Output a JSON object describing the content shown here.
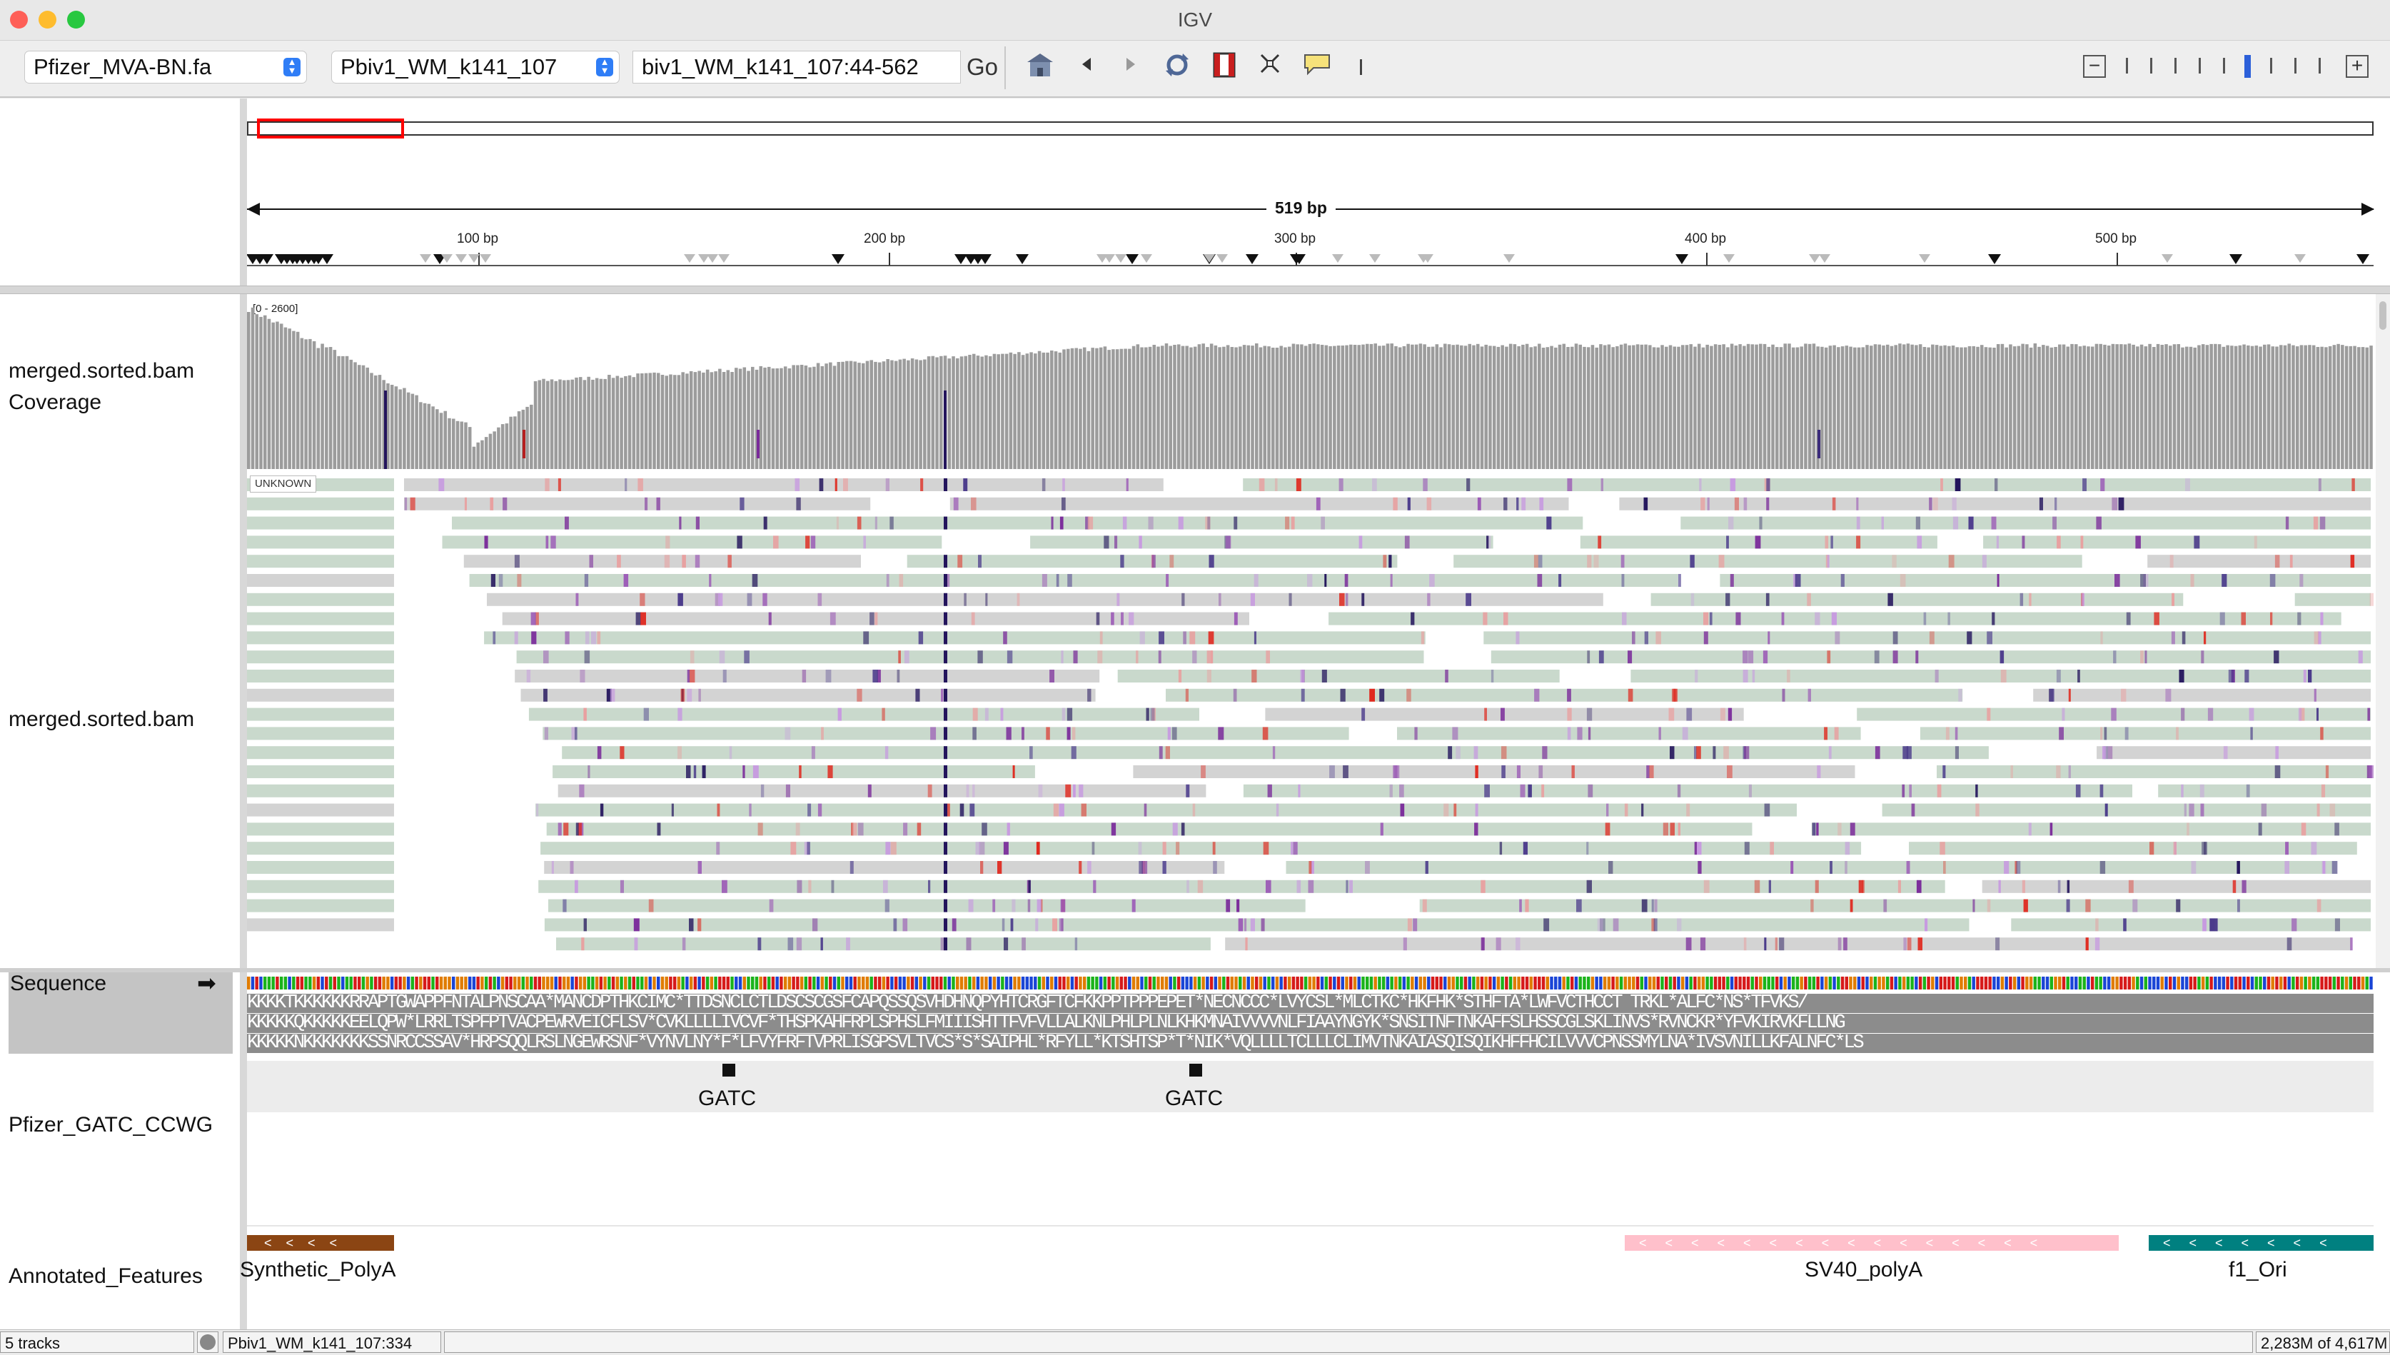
{
  "window": {
    "title": "IGV",
    "traffic_colors": [
      "#fe5f57",
      "#febc2e",
      "#28c840"
    ]
  },
  "toolbar": {
    "genome": "Pfizer_MVA-BN.fa",
    "chromosome": "Pbiv1_WM_k141_107",
    "locus": "biv1_WM_k141_107:44-562",
    "go_label": "Go",
    "icons": [
      "home-icon",
      "back-icon",
      "forward-icon",
      "refresh-icon",
      "roi-icon",
      "resize-icon",
      "popup-info-icon"
    ],
    "zoom_minus": "−",
    "zoom_plus": "+"
  },
  "ruler": {
    "span_label": "519 bp",
    "ticks": [
      "100 bp",
      "200 bp",
      "300 bp",
      "400 bp",
      "500 bp"
    ]
  },
  "tracks": {
    "coverage_name": "merged.sorted.bam Coverage",
    "coverage_range": "[0 - 2600]",
    "alignment_name": "merged.sorted.bam",
    "unknown_tag": "UNKNOWN",
    "sequence_name": "Sequence",
    "sequence_arrow": "➡",
    "gatc_name": "Pfizer_GATC_CCWG",
    "annot_name": "Annotated_Features"
  },
  "translation": {
    "frame1": "KKKKTKKKKKKRRAPTGWAPPFNTALPNSCAA*MANCDPTHKCIMC*TTDSNCLCTLDSCSCGSFCAPQSSQSVHDHNQPYHTCRGFTCFKKPPTPPPEPET*NECNCCC*LVYCSL*MLCTKC*HKFHK*STHFTA*LWFVCTHCCT TRKL*ALFC*NS*TFVKS/",
    "frame2": "KKKKKQKKKKKEELQPW*LRRLTSPFPTVACPEWRVEICFLSV*CVKLLLLIVCVF*THSPKAHFRPLSPHSLFMIIISHTTFVFVLLALKNLPHLPLNLKHKMNAIVVVVNLFIAAYNGYK*SNSITNFTNKAFFSLHSSCGLSKLINVS*RVNCKR*YFVKIRVKFLLNG",
    "frame3": "KKKKKNKKKKKKKSSNRCCSSAV*HRPSQQLRSLNGEWRSNF*VYNVLNY*F*LFVYFRFTVPRLISGPSVLTVCS*S*SAIPHL*RFYLL*KTSHTSP*T*NIK*VQLLLLTCLLLCLIMVTNKAIASQISQIKHFFHCILVVVCPNSSMYLNA*IVSVNILLKFALNFC*LS"
  },
  "features": {
    "gatc_labels": [
      "GATC",
      "GATC"
    ],
    "annotations": [
      {
        "label": "Synthetic_PolyA",
        "color": "#8b4513"
      },
      {
        "label": "SV40_polyA",
        "color": "#ffc0cb"
      },
      {
        "label": "f1_Ori",
        "color": "#008080"
      }
    ]
  },
  "status": {
    "tracks": "5 tracks",
    "position": "Pbiv1_WM_k141_107:334",
    "memory": "2,283M of 4,617M"
  },
  "colors": {
    "read_fill": "#c9d9cc",
    "read_gray": "#d3d3d3",
    "coverage": "#9c9c9c",
    "mismatch_purple": "#7a2a9a",
    "mismatch_navy": "#23145c",
    "mismatch_red": "#e0261c",
    "roi_red": "#ff0000"
  }
}
